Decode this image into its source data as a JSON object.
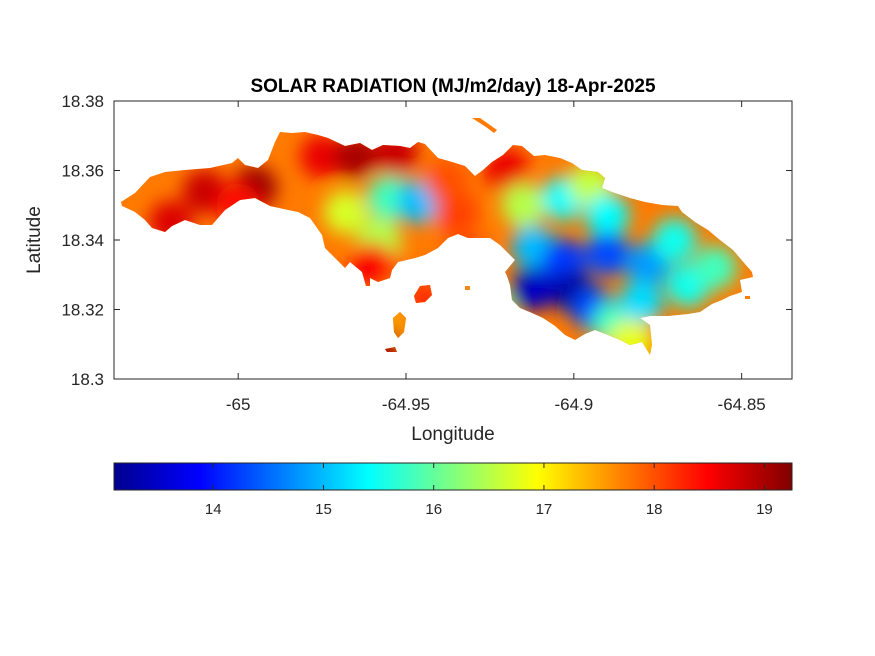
{
  "chart_data": {
    "type": "heatmap",
    "title": "SOLAR RADIATION (MJ/m2/day) 18-Apr-2025",
    "xlabel": "Longitude",
    "ylabel": "Latitude",
    "xlim": [
      -65.037,
      -64.835
    ],
    "ylim": [
      18.3,
      18.38
    ],
    "xticks": [
      -65,
      -64.95,
      -64.9,
      -64.85
    ],
    "xtick_labels": [
      "-65",
      "-64.95",
      "-64.9",
      "-64.85"
    ],
    "yticks": [
      18.3,
      18.32,
      18.34,
      18.36,
      18.38
    ],
    "ytick_labels": [
      "18.3",
      "18.32",
      "18.34",
      "18.36",
      "18.38"
    ],
    "colormap": "jet",
    "colorbar": {
      "orientation": "horizontal",
      "placement": "below",
      "range": [
        13.1,
        19.25
      ],
      "ticks": [
        14,
        15,
        16,
        17,
        18,
        19
      ],
      "tick_labels": [
        "14",
        "15",
        "16",
        "17",
        "18",
        "19"
      ]
    },
    "hotspots": [
      {
        "lon": -65.01,
        "lat": 18.354,
        "value": 18.8
      },
      {
        "lon": -64.995,
        "lat": 18.355,
        "value": 19.1
      },
      {
        "lon": -65.02,
        "lat": 18.345,
        "value": 18.7
      },
      {
        "lon": -65.0,
        "lat": 18.35,
        "value": 18.4
      },
      {
        "lon": -64.975,
        "lat": 18.364,
        "value": 18.6
      },
      {
        "lon": -64.965,
        "lat": 18.364,
        "value": 19.0
      },
      {
        "lon": -64.953,
        "lat": 18.365,
        "value": 18.8
      },
      {
        "lon": -64.968,
        "lat": 18.348,
        "value": 16.7
      },
      {
        "lon": -64.955,
        "lat": 18.352,
        "value": 15.8
      },
      {
        "lon": -64.946,
        "lat": 18.351,
        "value": 15.0
      },
      {
        "lon": -64.958,
        "lat": 18.34,
        "value": 16.5
      },
      {
        "lon": -64.935,
        "lat": 18.348,
        "value": 18.1
      },
      {
        "lon": -64.932,
        "lat": 18.336,
        "value": 18.0
      },
      {
        "lon": -64.938,
        "lat": 18.357,
        "value": 18.0
      },
      {
        "lon": -64.92,
        "lat": 18.36,
        "value": 18.6
      },
      {
        "lon": -64.915,
        "lat": 18.35,
        "value": 16.5
      },
      {
        "lon": -64.903,
        "lat": 18.352,
        "value": 15.4
      },
      {
        "lon": -64.895,
        "lat": 18.356,
        "value": 16.6
      },
      {
        "lon": -64.89,
        "lat": 18.347,
        "value": 15.4
      },
      {
        "lon": -64.912,
        "lat": 18.338,
        "value": 15.0
      },
      {
        "lon": -64.903,
        "lat": 18.334,
        "value": 14.2
      },
      {
        "lon": -64.89,
        "lat": 18.336,
        "value": 14.3
      },
      {
        "lon": -64.878,
        "lat": 18.333,
        "value": 14.8
      },
      {
        "lon": -64.87,
        "lat": 18.34,
        "value": 15.5
      },
      {
        "lon": -64.866,
        "lat": 18.327,
        "value": 15.5
      },
      {
        "lon": -64.858,
        "lat": 18.332,
        "value": 15.8
      },
      {
        "lon": -64.912,
        "lat": 18.326,
        "value": 13.5
      },
      {
        "lon": -64.9,
        "lat": 18.325,
        "value": 13.3
      },
      {
        "lon": -64.894,
        "lat": 18.32,
        "value": 14.3
      },
      {
        "lon": -64.888,
        "lat": 18.316,
        "value": 15.8
      },
      {
        "lon": -64.88,
        "lat": 18.322,
        "value": 15.2
      },
      {
        "lon": -64.951,
        "lat": 18.329,
        "value": 17.8
      },
      {
        "lon": -64.96,
        "lat": 18.333,
        "value": 18.5
      },
      {
        "lon": -64.945,
        "lat": 18.322,
        "value": 18.2
      },
      {
        "lon": -64.955,
        "lat": 18.316,
        "value": 17.5
      },
      {
        "lon": -64.958,
        "lat": 18.309,
        "value": 19.0
      },
      {
        "lon": -64.925,
        "lat": 18.32,
        "value": 16.0
      },
      {
        "lon": -64.883,
        "lat": 18.311,
        "value": 16.8
      }
    ]
  }
}
